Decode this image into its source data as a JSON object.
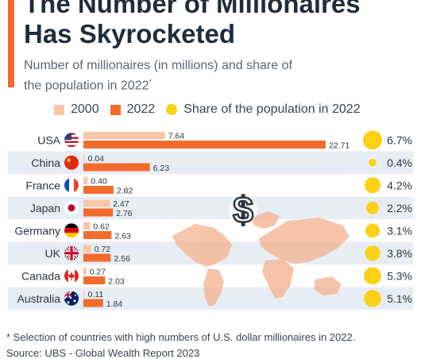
{
  "title": "The Number of Millionaires\nHas Skyrocketed",
  "subtitle": "Number of millionaires (in millions) and share of the population in 2022",
  "subtitle_mark": "*",
  "footnote": "* Selection of countries with high numbers of U.S. dollar millionaires in 2022.",
  "source": "Source: UBS - Global Wealth Report 2023",
  "colors": {
    "accent": "#f26b2c",
    "bar_2000": "#f9c6a8",
    "bar_2022": "#f26b2c",
    "share": "#fcd116",
    "row_shade": "#e7edf4"
  },
  "icons": [
    "us-flag-icon",
    "china-flag-icon",
    "france-flag-icon",
    "japan-flag-icon",
    "germany-flag-icon",
    "uk-flag-icon",
    "canada-flag-icon",
    "australia-flag-icon",
    "dollar-sign-icon",
    "world-map-icon"
  ],
  "chart_data": {
    "type": "bar",
    "orientation": "horizontal",
    "categories": [
      "USA",
      "China",
      "France",
      "Japan",
      "Germany",
      "UK",
      "Canada",
      "Australia"
    ],
    "series": [
      {
        "name": "2000",
        "values": [
          7.64,
          0.04,
          0.4,
          2.47,
          0.62,
          0.72,
          0.27,
          0.11
        ]
      },
      {
        "name": "2022",
        "values": [
          22.71,
          6.23,
          2.82,
          2.76,
          2.63,
          2.56,
          2.03,
          1.84
        ]
      },
      {
        "name": "Share of the population in 2022",
        "values": [
          6.7,
          0.4,
          4.2,
          2.2,
          3.1,
          3.8,
          5.3,
          5.1
        ]
      }
    ],
    "share_labels": [
      "6.7%",
      "0.4%",
      "4.2%",
      "2.2%",
      "3.1%",
      "3.8%",
      "5.3%",
      "5.1%"
    ],
    "xlim": [
      0,
      22.71
    ],
    "grid": false,
    "legend_position": "top"
  }
}
